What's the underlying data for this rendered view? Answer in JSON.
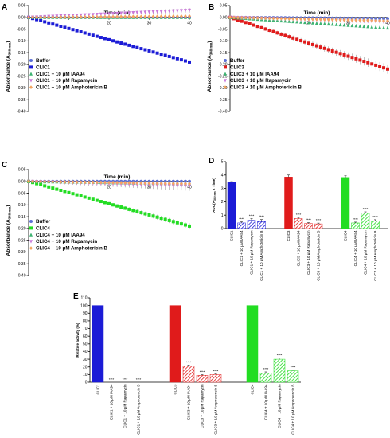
{
  "panels": {
    "A": "A",
    "B": "B",
    "C": "C",
    "D": "D",
    "E": "E"
  },
  "chart_data": [
    {
      "id": "A",
      "type": "scatter",
      "xlabel": "Time (min)",
      "ylabel_main": "Absorbance (A",
      "ylabel_sub": "340 nm",
      "ylabel_end": ")",
      "xlim": [
        0,
        40
      ],
      "ylim": [
        -0.4,
        0.05
      ],
      "yticks": [
        "0.05",
        "0.00",
        "-0.05",
        "-0.10",
        "-0.15",
        "-0.20",
        "-0.25",
        "-0.30",
        "-0.35",
        "-0.40"
      ],
      "xticks": [
        "20",
        "30",
        "40"
      ],
      "legend_position": "lower-left",
      "series": [
        {
          "name": "Buffer",
          "marker": "circle",
          "color": "#5b6fd6",
          "start": 0.0,
          "end": 0.0,
          "err": 0.005
        },
        {
          "name": "CLIC1",
          "marker": "square",
          "color": "#1b1bd6",
          "start": 0.0,
          "end": -0.19,
          "err": 0.004
        },
        {
          "name": "CLIC1 + 10 μM IAA94",
          "marker": "triangle-up",
          "color": "#3cb371",
          "start": 0.0,
          "end": 0.0,
          "err": 0.004
        },
        {
          "name": "CLIC1 + 10 μM Rapamycin",
          "marker": "triangle-down",
          "color": "#c978d8",
          "start": 0.0,
          "end": 0.03,
          "err": 0.01
        },
        {
          "name": "CLIC1 + 10 μM Amphotericin B",
          "marker": "diamond",
          "color": "#f4a460",
          "start": 0.0,
          "end": 0.005,
          "err": 0.004
        }
      ]
    },
    {
      "id": "B",
      "type": "scatter",
      "xlabel": "Time (min)",
      "ylabel_main": "Absorbance (A",
      "ylabel_sub": "340 nm",
      "ylabel_end": ")",
      "xlim": [
        0,
        40
      ],
      "ylim": [
        -0.4,
        0.05
      ],
      "yticks": [
        "0.05",
        "0.00",
        "-0.05",
        "-0.10",
        "-0.15",
        "-0.20",
        "-0.25",
        "-0.30",
        "-0.35",
        "-0.40"
      ],
      "xticks": [
        "20",
        "30",
        "40"
      ],
      "legend_position": "lower-left",
      "series": [
        {
          "name": "Buffer",
          "marker": "circle",
          "color": "#5b6fd6",
          "start": 0.0,
          "end": -0.005,
          "err": 0.005
        },
        {
          "name": "CLIC3",
          "marker": "square",
          "color": "#e01b1b",
          "start": 0.0,
          "end": -0.22,
          "err": 0.02
        },
        {
          "name": "CLIC3 + 10 μM IAA94",
          "marker": "triangle-up",
          "color": "#3cb371",
          "start": 0.0,
          "end": -0.045,
          "err": 0.006
        },
        {
          "name": "CLIC3 + 10 μM Rapamycin",
          "marker": "triangle-down",
          "color": "#c978d8",
          "start": 0.0,
          "end": -0.02,
          "err": 0.006
        },
        {
          "name": "CLIC3 + 10 μM Amphotericin B",
          "marker": "diamond",
          "color": "#f4a460",
          "start": 0.0,
          "end": -0.015,
          "err": 0.004
        }
      ]
    },
    {
      "id": "C",
      "type": "scatter",
      "xlabel": "Time (min)",
      "ylabel_main": "Absorbance (A",
      "ylabel_sub": "340 nm",
      "ylabel_end": ")",
      "xlim": [
        0,
        40
      ],
      "ylim": [
        -0.4,
        0.05
      ],
      "yticks": [
        "0.05",
        "0.00",
        "-0.05",
        "-0.10",
        "-0.15",
        "-0.20",
        "-0.25",
        "-0.30",
        "-0.35",
        "-0.40"
      ],
      "xticks": [
        "20",
        "30",
        "40"
      ],
      "legend_position": "lower-left",
      "series": [
        {
          "name": "Buffer",
          "marker": "circle",
          "color": "#5b6fd6",
          "start": 0.0,
          "end": 0.0,
          "err": 0.005
        },
        {
          "name": "CLIC4",
          "marker": "square",
          "color": "#22dd22",
          "start": 0.0,
          "end": -0.19,
          "err": 0.012
        },
        {
          "name": "CLIC4 + 10 μM IAA94",
          "marker": "triangle-up",
          "color": "#3cb371",
          "start": 0.0,
          "end": -0.01,
          "err": 0.008
        },
        {
          "name": "CLIC4 + 10 μM Rapamycin",
          "marker": "triangle-down",
          "color": "#c978d8",
          "start": 0.0,
          "end": -0.02,
          "err": 0.02
        },
        {
          "name": "CLIC4 + 10 μM Amphotericin B",
          "marker": "diamond",
          "color": "#f4a460",
          "start": 0.0,
          "end": -0.01,
          "err": 0.005
        }
      ]
    },
    {
      "id": "D",
      "type": "bar",
      "ylabel_main": "AUC(A",
      "ylabel_sub": "340 nm",
      "ylabel_end": " x Time)",
      "ylim": [
        0,
        5
      ],
      "yticks": [
        "0",
        "1",
        "2",
        "3",
        "4",
        "5"
      ],
      "groups": [
        {
          "color": "#1b1bd6",
          "categories": [
            "CLIC1",
            "CLIC1 + 10 μM IAA94",
            "CLIC1 + 10 μM Rapamycin",
            "CLIC1 + 10 μM Amphotericin B"
          ],
          "values": [
            3.45,
            0.42,
            0.62,
            0.52
          ],
          "errors": [
            0.06,
            0.08,
            0.12,
            0.15
          ],
          "stars": [
            "",
            "****",
            "****",
            "****"
          ]
        },
        {
          "color": "#e01b1b",
          "categories": [
            "CLIC3",
            "CLIC3 + 10 μM IAA94",
            "CLIC3 + 10 μM Rapamycin",
            "CLIC3 + 10 μM Amphotericin B"
          ],
          "values": [
            3.85,
            0.75,
            0.38,
            0.35
          ],
          "errors": [
            0.15,
            0.08,
            0.06,
            0.06
          ],
          "stars": [
            "",
            "****",
            "****",
            "****"
          ]
        },
        {
          "color": "#22dd22",
          "categories": [
            "CLIC4",
            "CLIC4 + 10 μM IAA94",
            "CLIC4 + 10 μM Rapamycin",
            "CLIC4 + 10 μM Amphotericin B"
          ],
          "values": [
            3.82,
            0.42,
            1.15,
            0.58
          ],
          "errors": [
            0.12,
            0.06,
            0.1,
            0.08
          ],
          "stars": [
            "",
            "****",
            "****",
            "****"
          ]
        }
      ]
    },
    {
      "id": "E",
      "type": "bar",
      "ylabel_main": "Relative activity (%)",
      "ylim": [
        0,
        110
      ],
      "yticks": [
        "0",
        "10",
        "20",
        "30",
        "40",
        "50",
        "60",
        "70",
        "80",
        "90",
        "100",
        "110"
      ],
      "groups": [
        {
          "color": "#1b1bd6",
          "categories": [
            "CLIC1",
            "CLIC1 + 10 μM IAA94",
            "CLIC1 + 10 μM Rapamycin",
            "CLIC1 + 10 μM Amphotericin B"
          ],
          "values": [
            100,
            0,
            0,
            0
          ],
          "errors": [
            0,
            0,
            0,
            0
          ],
          "stars": [
            "",
            "****",
            "****",
            "****"
          ]
        },
        {
          "color": "#e01b1b",
          "categories": [
            "CLIC3",
            "CLIC3 + 10 μM IAA94",
            "CLIC3 + 10 μM Rapamycin",
            "CLIC3 + 10 μM Amphotericin B"
          ],
          "values": [
            100,
            21,
            9,
            10
          ],
          "errors": [
            0,
            1.5,
            0.8,
            0.8
          ],
          "stars": [
            "",
            "****",
            "****",
            "****"
          ]
        },
        {
          "color": "#22dd22",
          "categories": [
            "CLIC4",
            "CLIC4 + 10 μM IAA94",
            "CLIC4 + 10 μM Rapamycin",
            "CLIC4 + 10 μM Amphotericin B"
          ],
          "values": [
            100,
            12,
            30,
            15
          ],
          "errors": [
            0,
            1.5,
            1.5,
            1.2
          ],
          "stars": [
            "",
            "****",
            "****",
            "****"
          ]
        }
      ]
    }
  ]
}
